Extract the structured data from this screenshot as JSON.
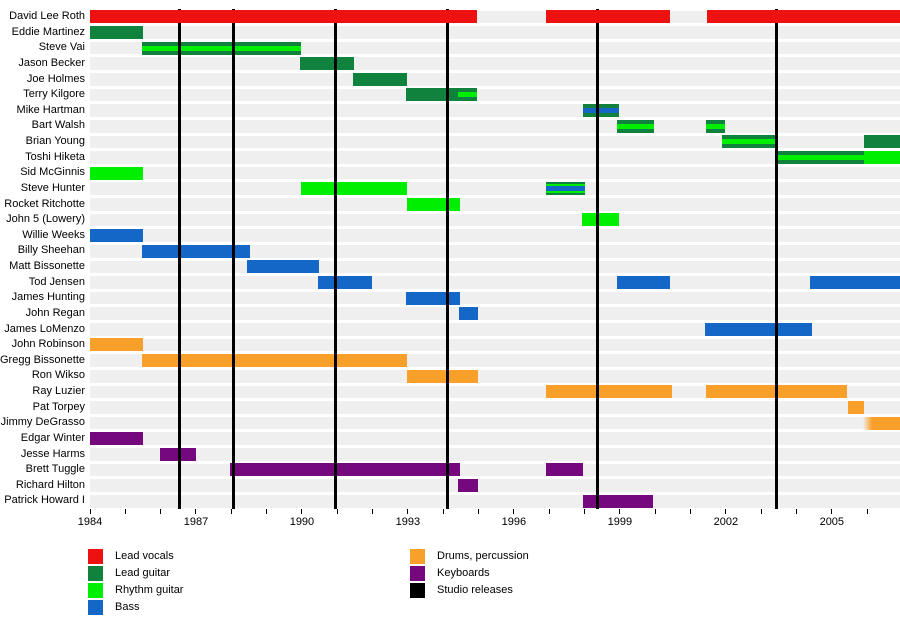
{
  "chart_data": {
    "type": "timeline-gantt",
    "title": "",
    "x_domain": [
      1984,
      2006.93
    ],
    "x_labeled_ticks": [
      1984,
      1987,
      1990,
      1993,
      1996,
      1999,
      2002,
      2005
    ],
    "x_minor_tick_interval": 1,
    "x_minor_tick_start": 1984,
    "x_minor_tick_end": 2006,
    "grid": "studio-release-vertical-lines",
    "legend_position": "bottom-left",
    "studio_releases": [
      1986.52,
      1988.05,
      1990.96,
      1994.13,
      1998.38,
      2003.44
    ],
    "members": [
      {
        "name": "David Lee Roth",
        "bars": [
          {
            "start": 1984,
            "end": 1994.95,
            "style": "vocals"
          },
          {
            "start": 1996.9,
            "end": 2000.42,
            "style": "vocals"
          },
          {
            "start": 2001.46,
            "end": 2006.93,
            "style": "vocals"
          }
        ]
      },
      {
        "name": "Eddie Martinez",
        "bars": [
          {
            "start": 1984,
            "end": 1985.5,
            "style": "lead"
          }
        ]
      },
      {
        "name": "Steve Vai",
        "bars": [
          {
            "start": 1985.47,
            "end": 1989.97,
            "style": "lead_rhythm"
          }
        ]
      },
      {
        "name": "Jason Becker",
        "bars": [
          {
            "start": 1989.94,
            "end": 1991.47,
            "style": "lead"
          }
        ]
      },
      {
        "name": "Joe Holmes",
        "bars": [
          {
            "start": 1991.44,
            "end": 1992.97,
            "style": "lead"
          }
        ]
      },
      {
        "name": "Terry Kilgore",
        "bars": [
          {
            "start": 1992.94,
            "end": 1994.95,
            "style": "lead"
          },
          {
            "start": 1994.42,
            "end": 1994.95,
            "style": "rhythm_overlay"
          }
        ]
      },
      {
        "name": "Mike Hartman",
        "bars": [
          {
            "start": 1997.95,
            "end": 1998.97,
            "style": "lead_bass"
          }
        ]
      },
      {
        "name": "Bart Walsh",
        "bars": [
          {
            "start": 1998.92,
            "end": 1999.96,
            "style": "lead_rhythm"
          },
          {
            "start": 2001.44,
            "end": 2001.97,
            "style": "lead_rhythm"
          }
        ]
      },
      {
        "name": "Brian Young",
        "bars": [
          {
            "start": 2001.89,
            "end": 2003.42,
            "style": "lead_rhythm"
          },
          {
            "start": 2005.9,
            "end": 2006.93,
            "style": "lead"
          }
        ]
      },
      {
        "name": "Toshi Hiketa",
        "bars": [
          {
            "start": 2003.42,
            "end": 2005.9,
            "style": "lead_rhythm"
          },
          {
            "start": 2005.9,
            "end": 2006.93,
            "style": "rhythm"
          }
        ]
      },
      {
        "name": "Sid McGinnis",
        "bars": [
          {
            "start": 1984,
            "end": 1985.5,
            "style": "rhythm"
          }
        ]
      },
      {
        "name": "Steve Hunter",
        "bars": [
          {
            "start": 1989.97,
            "end": 1992.97,
            "style": "rhythm"
          },
          {
            "start": 1996.9,
            "end": 1998.0,
            "style": "lead_rhythm_bass"
          }
        ]
      },
      {
        "name": "Rocket Ritchotte",
        "bars": [
          {
            "start": 1992.97,
            "end": 1994.47,
            "style": "rhythm"
          }
        ]
      },
      {
        "name": "John 5 (Lowery)",
        "bars": [
          {
            "start": 1997.92,
            "end": 1998.97,
            "style": "rhythm"
          }
        ]
      },
      {
        "name": "Willie Weeks",
        "bars": [
          {
            "start": 1984,
            "end": 1985.5,
            "style": "bass"
          }
        ]
      },
      {
        "name": "Billy Sheehan",
        "bars": [
          {
            "start": 1985.47,
            "end": 1988.53,
            "style": "bass"
          }
        ]
      },
      {
        "name": "Matt Bissonette",
        "bars": [
          {
            "start": 1988.44,
            "end": 1990.48,
            "style": "bass"
          }
        ]
      },
      {
        "name": "Tod Jensen",
        "bars": [
          {
            "start": 1990.45,
            "end": 1991.98,
            "style": "bass"
          },
          {
            "start": 1998.92,
            "end": 2000.42,
            "style": "bass"
          },
          {
            "start": 2004.38,
            "end": 2006.93,
            "style": "bass"
          }
        ]
      },
      {
        "name": "James Hunting",
        "bars": [
          {
            "start": 1992.94,
            "end": 1994.47,
            "style": "bass"
          }
        ]
      },
      {
        "name": "John Regan",
        "bars": [
          {
            "start": 1994.44,
            "end": 1994.98,
            "style": "bass"
          }
        ]
      },
      {
        "name": "James LoMenzo",
        "bars": [
          {
            "start": 2001.41,
            "end": 2004.43,
            "style": "bass"
          }
        ]
      },
      {
        "name": "John Robinson",
        "bars": [
          {
            "start": 1984,
            "end": 1985.5,
            "style": "drums"
          }
        ]
      },
      {
        "name": "Gregg Bissonette",
        "bars": [
          {
            "start": 1985.47,
            "end": 1992.97,
            "style": "drums"
          }
        ]
      },
      {
        "name": "Ron Wikso",
        "bars": [
          {
            "start": 1992.97,
            "end": 1994.98,
            "style": "drums"
          }
        ]
      },
      {
        "name": "Ray Luzier",
        "bars": [
          {
            "start": 1996.9,
            "end": 2000.47,
            "style": "drums"
          },
          {
            "start": 2001.44,
            "end": 2005.42,
            "style": "drums"
          }
        ]
      },
      {
        "name": "Pat Torpey",
        "bars": [
          {
            "start": 2005.45,
            "end": 2005.9,
            "style": "drums"
          }
        ]
      },
      {
        "name": "Jimmy DeGrasso",
        "bars": [
          {
            "start": 2005.87,
            "end": 2006.93,
            "style": "drums_fadein"
          }
        ]
      },
      {
        "name": "Edgar Winter",
        "bars": [
          {
            "start": 1984,
            "end": 1985.5,
            "style": "keys"
          }
        ]
      },
      {
        "name": "Jesse Harms",
        "bars": [
          {
            "start": 1985.98,
            "end": 1987.0,
            "style": "keys"
          }
        ]
      },
      {
        "name": "Brett Tuggle",
        "bars": [
          {
            "start": 1987.96,
            "end": 1994.47,
            "style": "keys"
          },
          {
            "start": 1996.9,
            "end": 1997.95,
            "style": "keys"
          }
        ]
      },
      {
        "name": "Richard Hilton",
        "bars": [
          {
            "start": 1994.42,
            "end": 1994.98,
            "style": "keys"
          }
        ]
      },
      {
        "name": "Patrick Howard I",
        "bars": [
          {
            "start": 1997.95,
            "end": 1999.94,
            "style": "keys"
          }
        ]
      }
    ],
    "legend": [
      {
        "label": "Lead vocals",
        "color": "#ee1111"
      },
      {
        "label": "Lead guitar",
        "color": "#11813e"
      },
      {
        "label": "Rhythm guitar",
        "color": "#00ef00"
      },
      {
        "label": "Bass",
        "color": "#1467c6"
      },
      {
        "label": "Drums, percussion",
        "color": "#f9a02b"
      },
      {
        "label": "Keyboards",
        "color": "#76087d"
      },
      {
        "label": "Studio releases",
        "color": "#000000"
      }
    ]
  },
  "colors": {
    "vocals": "#ee1111",
    "lead": "#11813e",
    "rhythm": "#00ef00",
    "bass": "#1467c6",
    "drums": "#f9a02b",
    "keys": "#76087d",
    "gridline": "#000000",
    "row_track": "#efefef",
    "background": "#ffffff"
  },
  "layout_values": {
    "tick_labels": [
      "1984",
      "1987",
      "1990",
      "1993",
      "1996",
      "1999",
      "2002",
      "2005"
    ]
  }
}
